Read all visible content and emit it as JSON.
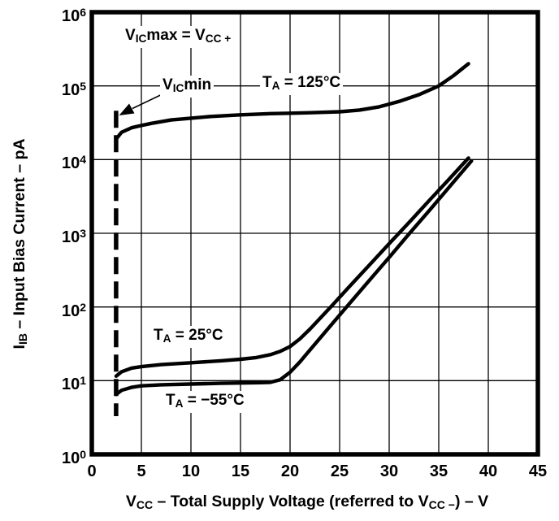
{
  "figure": {
    "background": "#ffffff",
    "ink_color": "#000000"
  },
  "annotations": {
    "vicmax": "V~IC~max = V~CC +~",
    "vicmin": "V~IC~min",
    "ta_125": "T~A~ = 125°C",
    "ta_25": "T~A~ = 25°C",
    "ta_m55": "T~A~ = −55°C"
  },
  "chart_data": {
    "type": "line",
    "grid": true,
    "legend": "none (curves labeled inline)",
    "x_axis": {
      "label": "V~CC~ – Total Supply Voltage (referred to V~CC −~) – V",
      "min": 0,
      "max": 45,
      "ticks": [
        0,
        5,
        10,
        15,
        20,
        25,
        30,
        35,
        40,
        45
      ],
      "unit": "V"
    },
    "y_axis": {
      "label": "I~IB~ – Input Bias Current – pA",
      "scale": "log",
      "min_exp": 0,
      "max_exp": 6,
      "tick_labels": [
        "10^6^",
        "10^5^",
        "10^4^",
        "10^3^",
        "10^2^",
        "10^1^",
        "10^0^"
      ],
      "unit": "pA"
    },
    "vicmin_boundary_line": {
      "style": "dashed-vertical",
      "x": 2.45,
      "y_top": 46000,
      "y_bottom": 3.3
    },
    "series": [
      {
        "name": "TA = 125°C",
        "points": [
          [
            2.45,
            19000
          ],
          [
            3,
            23500
          ],
          [
            4,
            27000
          ],
          [
            5,
            29000
          ],
          [
            6,
            31000
          ],
          [
            8,
            34500
          ],
          [
            10,
            36500
          ],
          [
            12,
            38500
          ],
          [
            15,
            40500
          ],
          [
            18,
            42000
          ],
          [
            20,
            42600
          ],
          [
            22,
            43200
          ],
          [
            25,
            44500
          ],
          [
            27,
            47000
          ],
          [
            29,
            52000
          ],
          [
            31,
            61500
          ],
          [
            33,
            76000
          ],
          [
            35,
            100000
          ],
          [
            36.5,
            138000
          ],
          [
            38,
            200000
          ]
        ]
      },
      {
        "name": "TA = 25°C",
        "points": [
          [
            2.45,
            11.5
          ],
          [
            3,
            13.2
          ],
          [
            4,
            14.8
          ],
          [
            5,
            15.5
          ],
          [
            7,
            16.5
          ],
          [
            10,
            17.5
          ],
          [
            13,
            18.6
          ],
          [
            15,
            19.5
          ],
          [
            16.5,
            20.5
          ],
          [
            18,
            22.5
          ],
          [
            19,
            25
          ],
          [
            20,
            29
          ],
          [
            21,
            37
          ],
          [
            22,
            50
          ],
          [
            24.1,
            100
          ],
          [
            26,
            190
          ],
          [
            28,
            370
          ],
          [
            30,
            725
          ],
          [
            32,
            1400
          ],
          [
            34,
            2750
          ],
          [
            36,
            5350
          ],
          [
            38,
            10500
          ]
        ]
      },
      {
        "name": "TA = −55°C",
        "points": [
          [
            2.45,
            6.5
          ],
          [
            3,
            7.4
          ],
          [
            4,
            8.1
          ],
          [
            5,
            8.5
          ],
          [
            7,
            8.8
          ],
          [
            10,
            9.0
          ],
          [
            13,
            9.2
          ],
          [
            15,
            9.3
          ],
          [
            17,
            9.4
          ],
          [
            18,
            9.5
          ],
          [
            19,
            10.3
          ],
          [
            20,
            13
          ],
          [
            21,
            18
          ],
          [
            22,
            26
          ],
          [
            24,
            54
          ],
          [
            25.7,
            100
          ],
          [
            28,
            230
          ],
          [
            30,
            470
          ],
          [
            32,
            980
          ],
          [
            34,
            2000
          ],
          [
            36,
            4150
          ],
          [
            38.3,
            9600
          ]
        ]
      }
    ]
  }
}
